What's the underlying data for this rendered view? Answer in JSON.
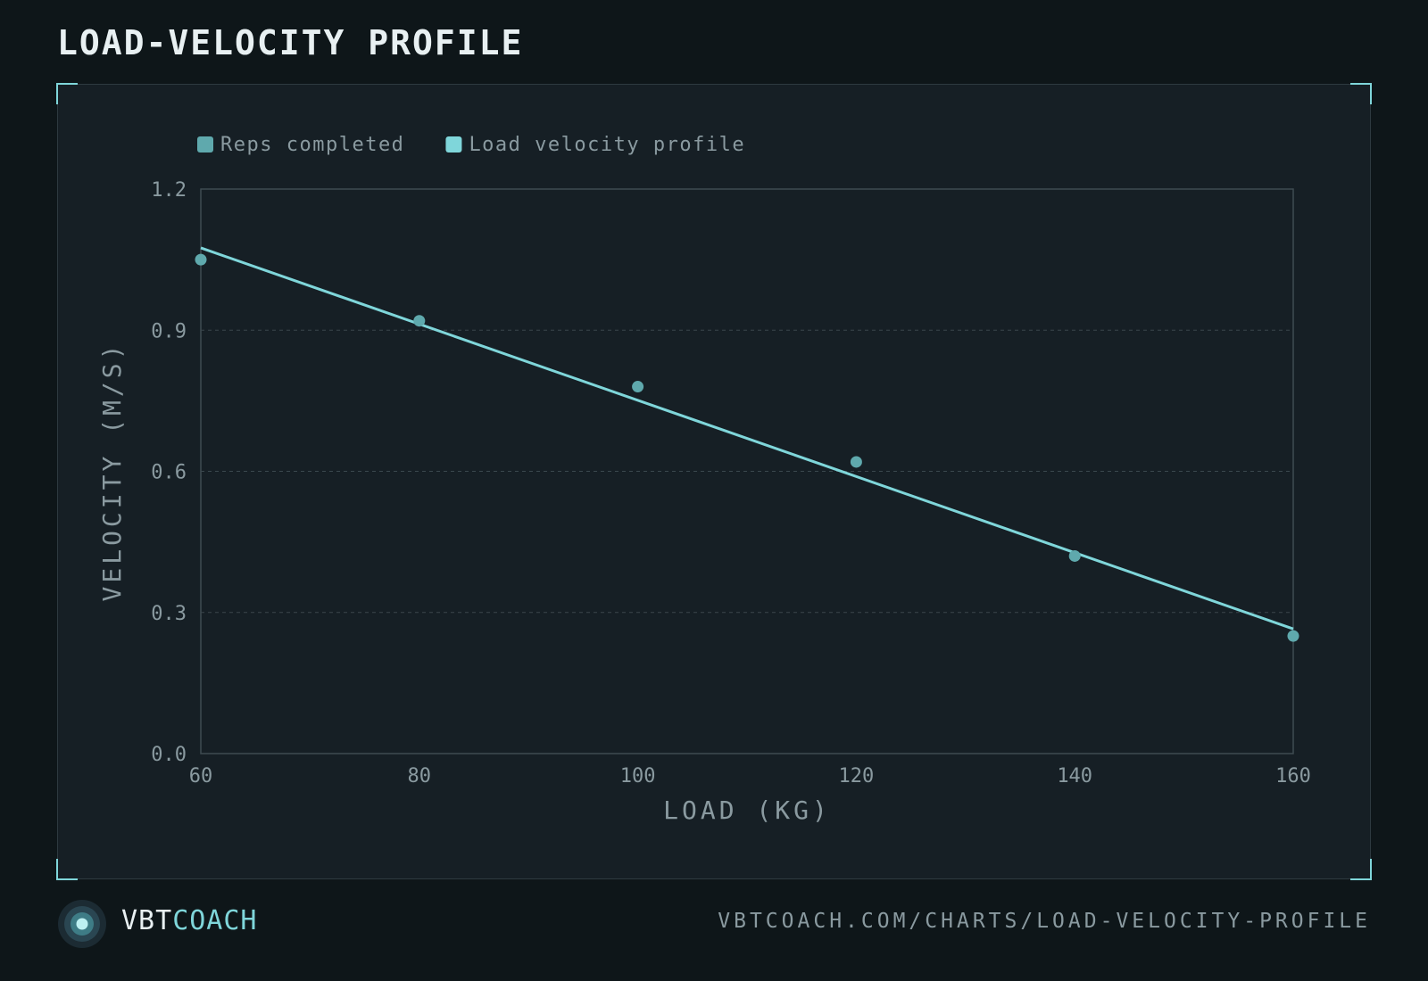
{
  "page": {
    "title": "LOAD-VELOCITY PROFILE"
  },
  "footer": {
    "brand_prefix": "VBT",
    "brand_suffix": "COACH",
    "url": "VBTCOACH.COM/CHARTS/LOAD-VELOCITY-PROFILE"
  },
  "colors": {
    "accent": "#7fd6da",
    "points": "#5fa9ad",
    "grid": "#3a474d",
    "axis_text": "#8a9aa0"
  },
  "chart_data": {
    "type": "scatter",
    "xlabel": "LOAD (KG)",
    "ylabel": "VELOCITY (M/S)",
    "xlim": [
      60,
      160
    ],
    "ylim": [
      0.0,
      1.2
    ],
    "x_ticks": [
      "60",
      "80",
      "100",
      "120",
      "140",
      "160"
    ],
    "y_ticks": [
      "0.0",
      "0.3",
      "0.6",
      "0.9",
      "1.2"
    ],
    "legend_position": "top-left",
    "grid": "horizontal dashed",
    "series": [
      {
        "name": "Reps completed",
        "kind": "scatter",
        "x": [
          60,
          80,
          100,
          120,
          140,
          160
        ],
        "y": [
          1.05,
          0.92,
          0.78,
          0.62,
          0.42,
          0.25
        ]
      },
      {
        "name": "Load velocity profile",
        "kind": "line",
        "x": [
          60,
          160
        ],
        "y": [
          1.075,
          0.265
        ]
      }
    ]
  }
}
